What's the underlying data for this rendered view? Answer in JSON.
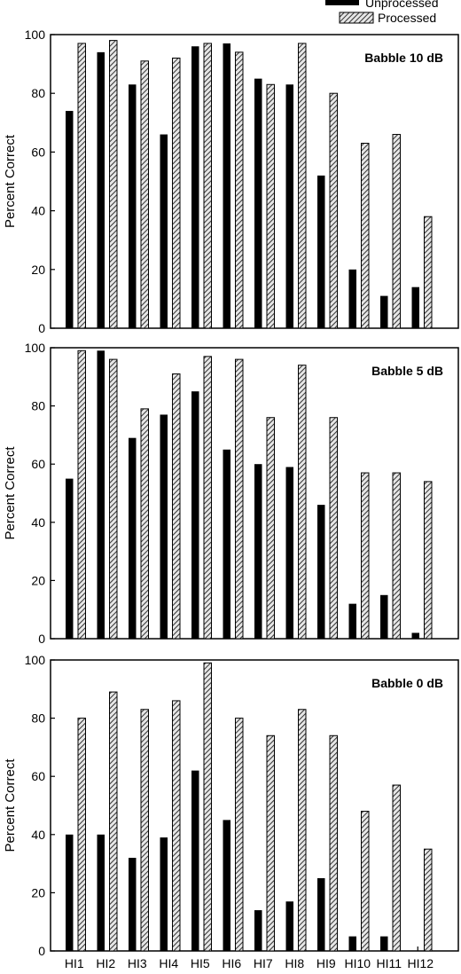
{
  "legend": {
    "position": "top-right",
    "entries": [
      {
        "label": "Unprocessed",
        "style": "solid",
        "color": "#000000"
      },
      {
        "label": "Processed",
        "style": "hatched",
        "color": "#555555"
      }
    ]
  },
  "chart_data": [
    {
      "type": "bar",
      "annotation": "Babble 10 dB",
      "ylabel": "Percent Correct",
      "ylim": [
        0,
        100
      ],
      "yticks": [
        "0",
        "20",
        "40",
        "60",
        "80",
        "100"
      ],
      "categories": [
        "HI1",
        "HI2",
        "HI3",
        "HI4",
        "HI5",
        "HI6",
        "HI7",
        "HI8",
        "HI9",
        "HI10",
        "HI11",
        "HI12"
      ],
      "series": [
        {
          "name": "Unprocessed",
          "values": [
            74,
            94,
            83,
            66,
            96,
            97,
            85,
            83,
            52,
            20,
            11,
            14
          ]
        },
        {
          "name": "Processed",
          "values": [
            97,
            98,
            91,
            92,
            97,
            94,
            83,
            97,
            80,
            63,
            66,
            38
          ]
        }
      ]
    },
    {
      "type": "bar",
      "annotation": "Babble 5 dB",
      "ylabel": "Percent Correct",
      "ylim": [
        0,
        100
      ],
      "yticks": [
        "0",
        "20",
        "40",
        "60",
        "80",
        "100"
      ],
      "categories": [
        "HI1",
        "HI2",
        "HI3",
        "HI4",
        "HI5",
        "HI6",
        "HI7",
        "HI8",
        "HI9",
        "HI10",
        "HI11",
        "HI12"
      ],
      "series": [
        {
          "name": "Unprocessed",
          "values": [
            55,
            99,
            69,
            77,
            85,
            65,
            60,
            59,
            46,
            12,
            15,
            2
          ]
        },
        {
          "name": "Processed",
          "values": [
            99,
            96,
            79,
            91,
            97,
            96,
            76,
            94,
            76,
            57,
            57,
            54
          ]
        }
      ]
    },
    {
      "type": "bar",
      "annotation": "Babble 0 dB",
      "ylabel": "Percent Correct",
      "ylim": [
        0,
        100
      ],
      "yticks": [
        "0",
        "20",
        "40",
        "60",
        "80",
        "100"
      ],
      "xticks": [
        "HI1",
        "HI2",
        "HI3",
        "HI4",
        "HI5",
        "HI6",
        "HI7",
        "HI8",
        "HI9",
        "HI10",
        "HI11",
        "HI12"
      ],
      "categories": [
        "HI1",
        "HI2",
        "HI3",
        "HI4",
        "HI5",
        "HI6",
        "HI7",
        "HI8",
        "HI9",
        "HI10",
        "HI11",
        "HI12"
      ],
      "series": [
        {
          "name": "Unprocessed",
          "values": [
            40,
            40,
            32,
            39,
            62,
            45,
            14,
            17,
            25,
            5,
            5,
            0
          ]
        },
        {
          "name": "Processed",
          "values": [
            80,
            89,
            83,
            86,
            99,
            80,
            74,
            83,
            74,
            48,
            57,
            35
          ]
        }
      ]
    }
  ]
}
